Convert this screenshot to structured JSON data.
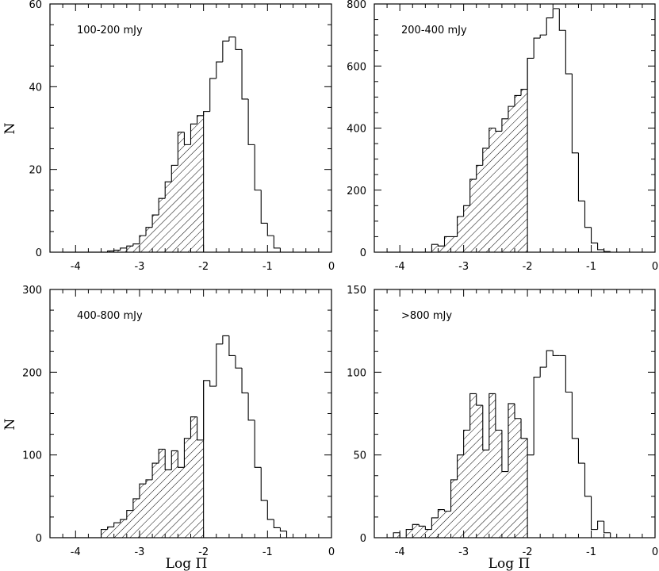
{
  "figure": {
    "ylabel": "N",
    "xlabel": "Log Π"
  },
  "chart_data": [
    {
      "type": "bar",
      "label": "100-200 mJy",
      "xlim": [
        -4.4,
        0
      ],
      "ylim": [
        0,
        60
      ],
      "xticks": [
        -4,
        -3,
        -2,
        -1,
        0
      ],
      "yticks": [
        0,
        20,
        40,
        60
      ],
      "hatch_below": -2,
      "bin_width": 0.1,
      "bins_start": [
        -4.2,
        -4.1,
        -4.0,
        -3.9,
        -3.8,
        -3.7,
        -3.6,
        -3.5,
        -3.4,
        -3.3,
        -3.2,
        -3.1,
        -3.0,
        -2.9,
        -2.8,
        -2.7,
        -2.6,
        -2.5,
        -2.4,
        -2.3,
        -2.2,
        -2.1,
        -2.0,
        -1.9,
        -1.8,
        -1.7,
        -1.6,
        -1.5,
        -1.4,
        -1.3,
        -1.2,
        -1.1,
        -1.0,
        -0.9,
        -0.8
      ],
      "values": [
        0,
        0,
        0,
        0,
        0,
        0,
        0,
        0.3,
        0.5,
        1,
        1.5,
        2,
        4,
        6,
        9,
        13,
        17,
        21,
        29,
        26,
        31,
        33,
        34,
        42,
        46,
        51,
        52,
        49,
        37,
        26,
        15,
        7,
        4,
        1,
        0
      ]
    },
    {
      "type": "bar",
      "label": "200-400 mJy",
      "xlim": [
        -4.4,
        0
      ],
      "ylim": [
        0,
        800
      ],
      "xticks": [
        -4,
        -3,
        -2,
        -1,
        0
      ],
      "yticks": [
        0,
        200,
        400,
        600,
        800
      ],
      "hatch_below": -2,
      "bin_width": 0.1,
      "bins_start": [
        -4.2,
        -4.1,
        -4.0,
        -3.9,
        -3.8,
        -3.7,
        -3.6,
        -3.5,
        -3.4,
        -3.3,
        -3.2,
        -3.1,
        -3.0,
        -2.9,
        -2.8,
        -2.7,
        -2.6,
        -2.5,
        -2.4,
        -2.3,
        -2.2,
        -2.1,
        -2.0,
        -1.9,
        -1.8,
        -1.7,
        -1.6,
        -1.5,
        -1.4,
        -1.3,
        -1.2,
        -1.1,
        -1.0,
        -0.9,
        -0.8
      ],
      "values": [
        0,
        0,
        0,
        0,
        0,
        0,
        0,
        25,
        20,
        50,
        50,
        115,
        150,
        235,
        280,
        335,
        400,
        390,
        430,
        470,
        505,
        525,
        625,
        690,
        700,
        755,
        785,
        715,
        575,
        320,
        165,
        80,
        30,
        8,
        2
      ]
    },
    {
      "type": "bar",
      "label": "400-800 mJy",
      "xlim": [
        -4.4,
        0
      ],
      "ylim": [
        0,
        300
      ],
      "xticks": [
        -4,
        -3,
        -2,
        -1,
        0
      ],
      "yticks": [
        0,
        100,
        200,
        300
      ],
      "hatch_below": -2,
      "bin_width": 0.1,
      "bins_start": [
        -4.2,
        -4.1,
        -4.0,
        -3.9,
        -3.8,
        -3.7,
        -3.6,
        -3.5,
        -3.4,
        -3.3,
        -3.2,
        -3.1,
        -3.0,
        -2.9,
        -2.8,
        -2.7,
        -2.6,
        -2.5,
        -2.4,
        -2.3,
        -2.2,
        -2.1,
        -2.0,
        -1.9,
        -1.8,
        -1.7,
        -1.6,
        -1.5,
        -1.4,
        -1.3,
        -1.2,
        -1.1,
        -1.0,
        -0.9,
        -0.8
      ],
      "values": [
        0,
        0,
        0,
        0,
        0,
        0,
        10,
        13,
        18,
        22,
        33,
        47,
        65,
        70,
        90,
        107,
        82,
        105,
        85,
        120,
        146,
        118,
        190,
        183,
        234,
        244,
        220,
        205,
        175,
        142,
        85,
        45,
        22,
        12,
        8
      ]
    },
    {
      "type": "bar",
      "label": ">800 mJy",
      "xlim": [
        -4.4,
        0
      ],
      "ylim": [
        0,
        150
      ],
      "xticks": [
        -4,
        -3,
        -2,
        -1,
        0
      ],
      "yticks": [
        0,
        50,
        100,
        150
      ],
      "hatch_below": -2,
      "bin_width": 0.1,
      "bins_start": [
        -4.2,
        -4.1,
        -4.0,
        -3.9,
        -3.8,
        -3.7,
        -3.6,
        -3.5,
        -3.4,
        -3.3,
        -3.2,
        -3.1,
        -3.0,
        -2.9,
        -2.8,
        -2.7,
        -2.6,
        -2.5,
        -2.4,
        -2.3,
        -2.2,
        -2.1,
        -2.0,
        -1.9,
        -1.8,
        -1.7,
        -1.6,
        -1.5,
        -1.4,
        -1.3,
        -1.2,
        -1.1,
        -1.0,
        -0.9,
        -0.8
      ],
      "values": [
        0,
        3,
        0,
        5,
        8,
        7,
        5,
        12,
        17,
        16,
        35,
        50,
        65,
        87,
        80,
        53,
        87,
        65,
        40,
        81,
        72,
        60,
        50,
        97,
        103,
        113,
        110,
        110,
        88,
        60,
        45,
        25,
        5,
        10,
        3
      ]
    }
  ]
}
